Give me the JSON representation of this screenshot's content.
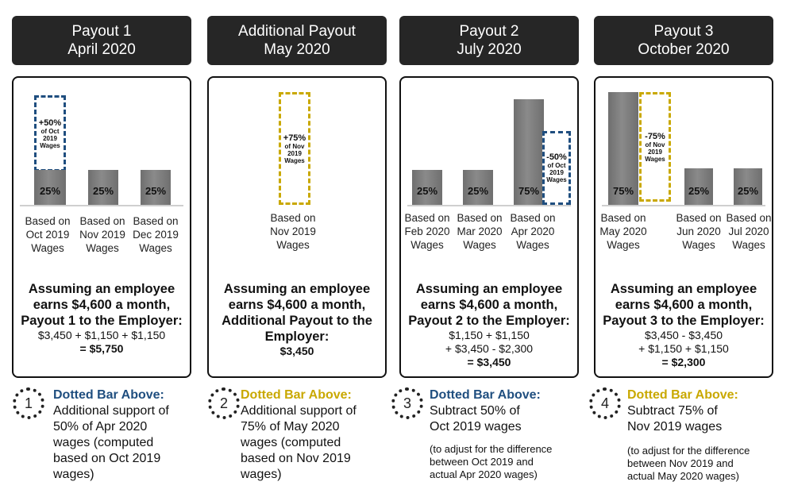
{
  "colors": {
    "blue": "#1f4e7f",
    "gold": "#c9a800",
    "header_bg": "#262626"
  },
  "payouts": [
    {
      "header": [
        "Payout 1",
        "April 2020"
      ],
      "bars": [
        {
          "value": "25%",
          "label": [
            "Based on",
            "Oct 2019",
            "Wages"
          ]
        },
        {
          "value": "25%",
          "label": [
            "Based on",
            "Nov 2019",
            "Wages"
          ]
        },
        {
          "value": "25%",
          "label": [
            "Based on",
            "Dec 2019",
            "Wages"
          ]
        }
      ],
      "dotted": {
        "pct": "+50%",
        "text": [
          "of Oct",
          "2019",
          "Wages"
        ],
        "color": "blue"
      },
      "summary": [
        "Assuming an employee",
        "earns $4,600 a month,",
        "Payout 1 to the Employer:"
      ],
      "calc": [
        "$3,450  +  $1,150  +  $1,150"
      ],
      "total": "= $5,750",
      "note": {
        "num": "1",
        "title": "Dotted Bar Above:",
        "body": [
          "Additional support of",
          "50% of Apr 2020",
          "wages (computed",
          "based on Oct 2019",
          "wages)"
        ],
        "small": []
      }
    },
    {
      "header": [
        "Additional Payout",
        "May 2020"
      ],
      "bars": [
        {
          "value": "",
          "label": [
            "Based on",
            "Nov 2019",
            "Wages"
          ]
        }
      ],
      "dotted": {
        "pct": "+75%",
        "text": [
          "of Nov",
          "2019",
          "Wages"
        ],
        "color": "gold"
      },
      "summary": [
        "Assuming an employee",
        "earns $4,600 a month,",
        "Additional Payout to the",
        "Employer:"
      ],
      "calc": [],
      "total": "$3,450",
      "note": {
        "num": "2",
        "title": "Dotted Bar Above:",
        "body": [
          "Additional support of",
          "75% of May 2020",
          "wages (computed",
          "based on Nov 2019",
          "wages)"
        ],
        "small": []
      }
    },
    {
      "header": [
        "Payout 2",
        "July 2020"
      ],
      "bars": [
        {
          "value": "25%",
          "label": [
            "Based on",
            "Feb 2020",
            "Wages"
          ]
        },
        {
          "value": "25%",
          "label": [
            "Based on",
            "Mar 2020",
            "Wages"
          ]
        },
        {
          "value": "75%",
          "label": [
            "Based on",
            "Apr 2020",
            "Wages"
          ]
        }
      ],
      "dotted": {
        "pct": "-50%",
        "text": [
          "of Oct",
          "2019",
          "Wages"
        ],
        "color": "blue"
      },
      "summary": [
        "Assuming an employee",
        "earns $4,600 a month,",
        "Payout 2 to the Employer:"
      ],
      "calc": [
        "$1,150  +  $1,150",
        "+  $3,450 - $2,300"
      ],
      "total": "= $3,450",
      "note": {
        "num": "3",
        "title": "Dotted Bar Above:",
        "body": [
          "Subtract 50% of",
          "Oct 2019 wages"
        ],
        "small": [
          "(to adjust for the difference",
          "between Oct 2019 and",
          "actual Apr 2020 wages)"
        ]
      }
    },
    {
      "header": [
        "Payout 3",
        "October 2020"
      ],
      "bars": [
        {
          "value": "75%",
          "label": [
            "Based on",
            "May 2020",
            "Wages"
          ]
        },
        {
          "value": "25%",
          "label": [
            "Based on",
            "Jun 2020",
            "Wages"
          ]
        },
        {
          "value": "25%",
          "label": [
            "Based on",
            "Jul 2020",
            "Wages"
          ]
        }
      ],
      "dotted": {
        "pct": "-75%",
        "text": [
          "of Nov",
          "2019",
          "Wages"
        ],
        "color": "gold"
      },
      "summary": [
        "Assuming an employee",
        "earns $4,600 a month,",
        "Payout 3 to the Employer:"
      ],
      "calc": [
        "$3,450  -  $3,450",
        "+  $1,150 + $1,150"
      ],
      "total": "= $2,300",
      "note": {
        "num": "4",
        "title": "Dotted Bar Above:",
        "body": [
          "Subtract 75% of",
          "Nov 2019 wages"
        ],
        "small": [
          "(to adjust for the difference",
          "between Nov 2019 and",
          "actual May 2020 wages)"
        ]
      }
    }
  ]
}
